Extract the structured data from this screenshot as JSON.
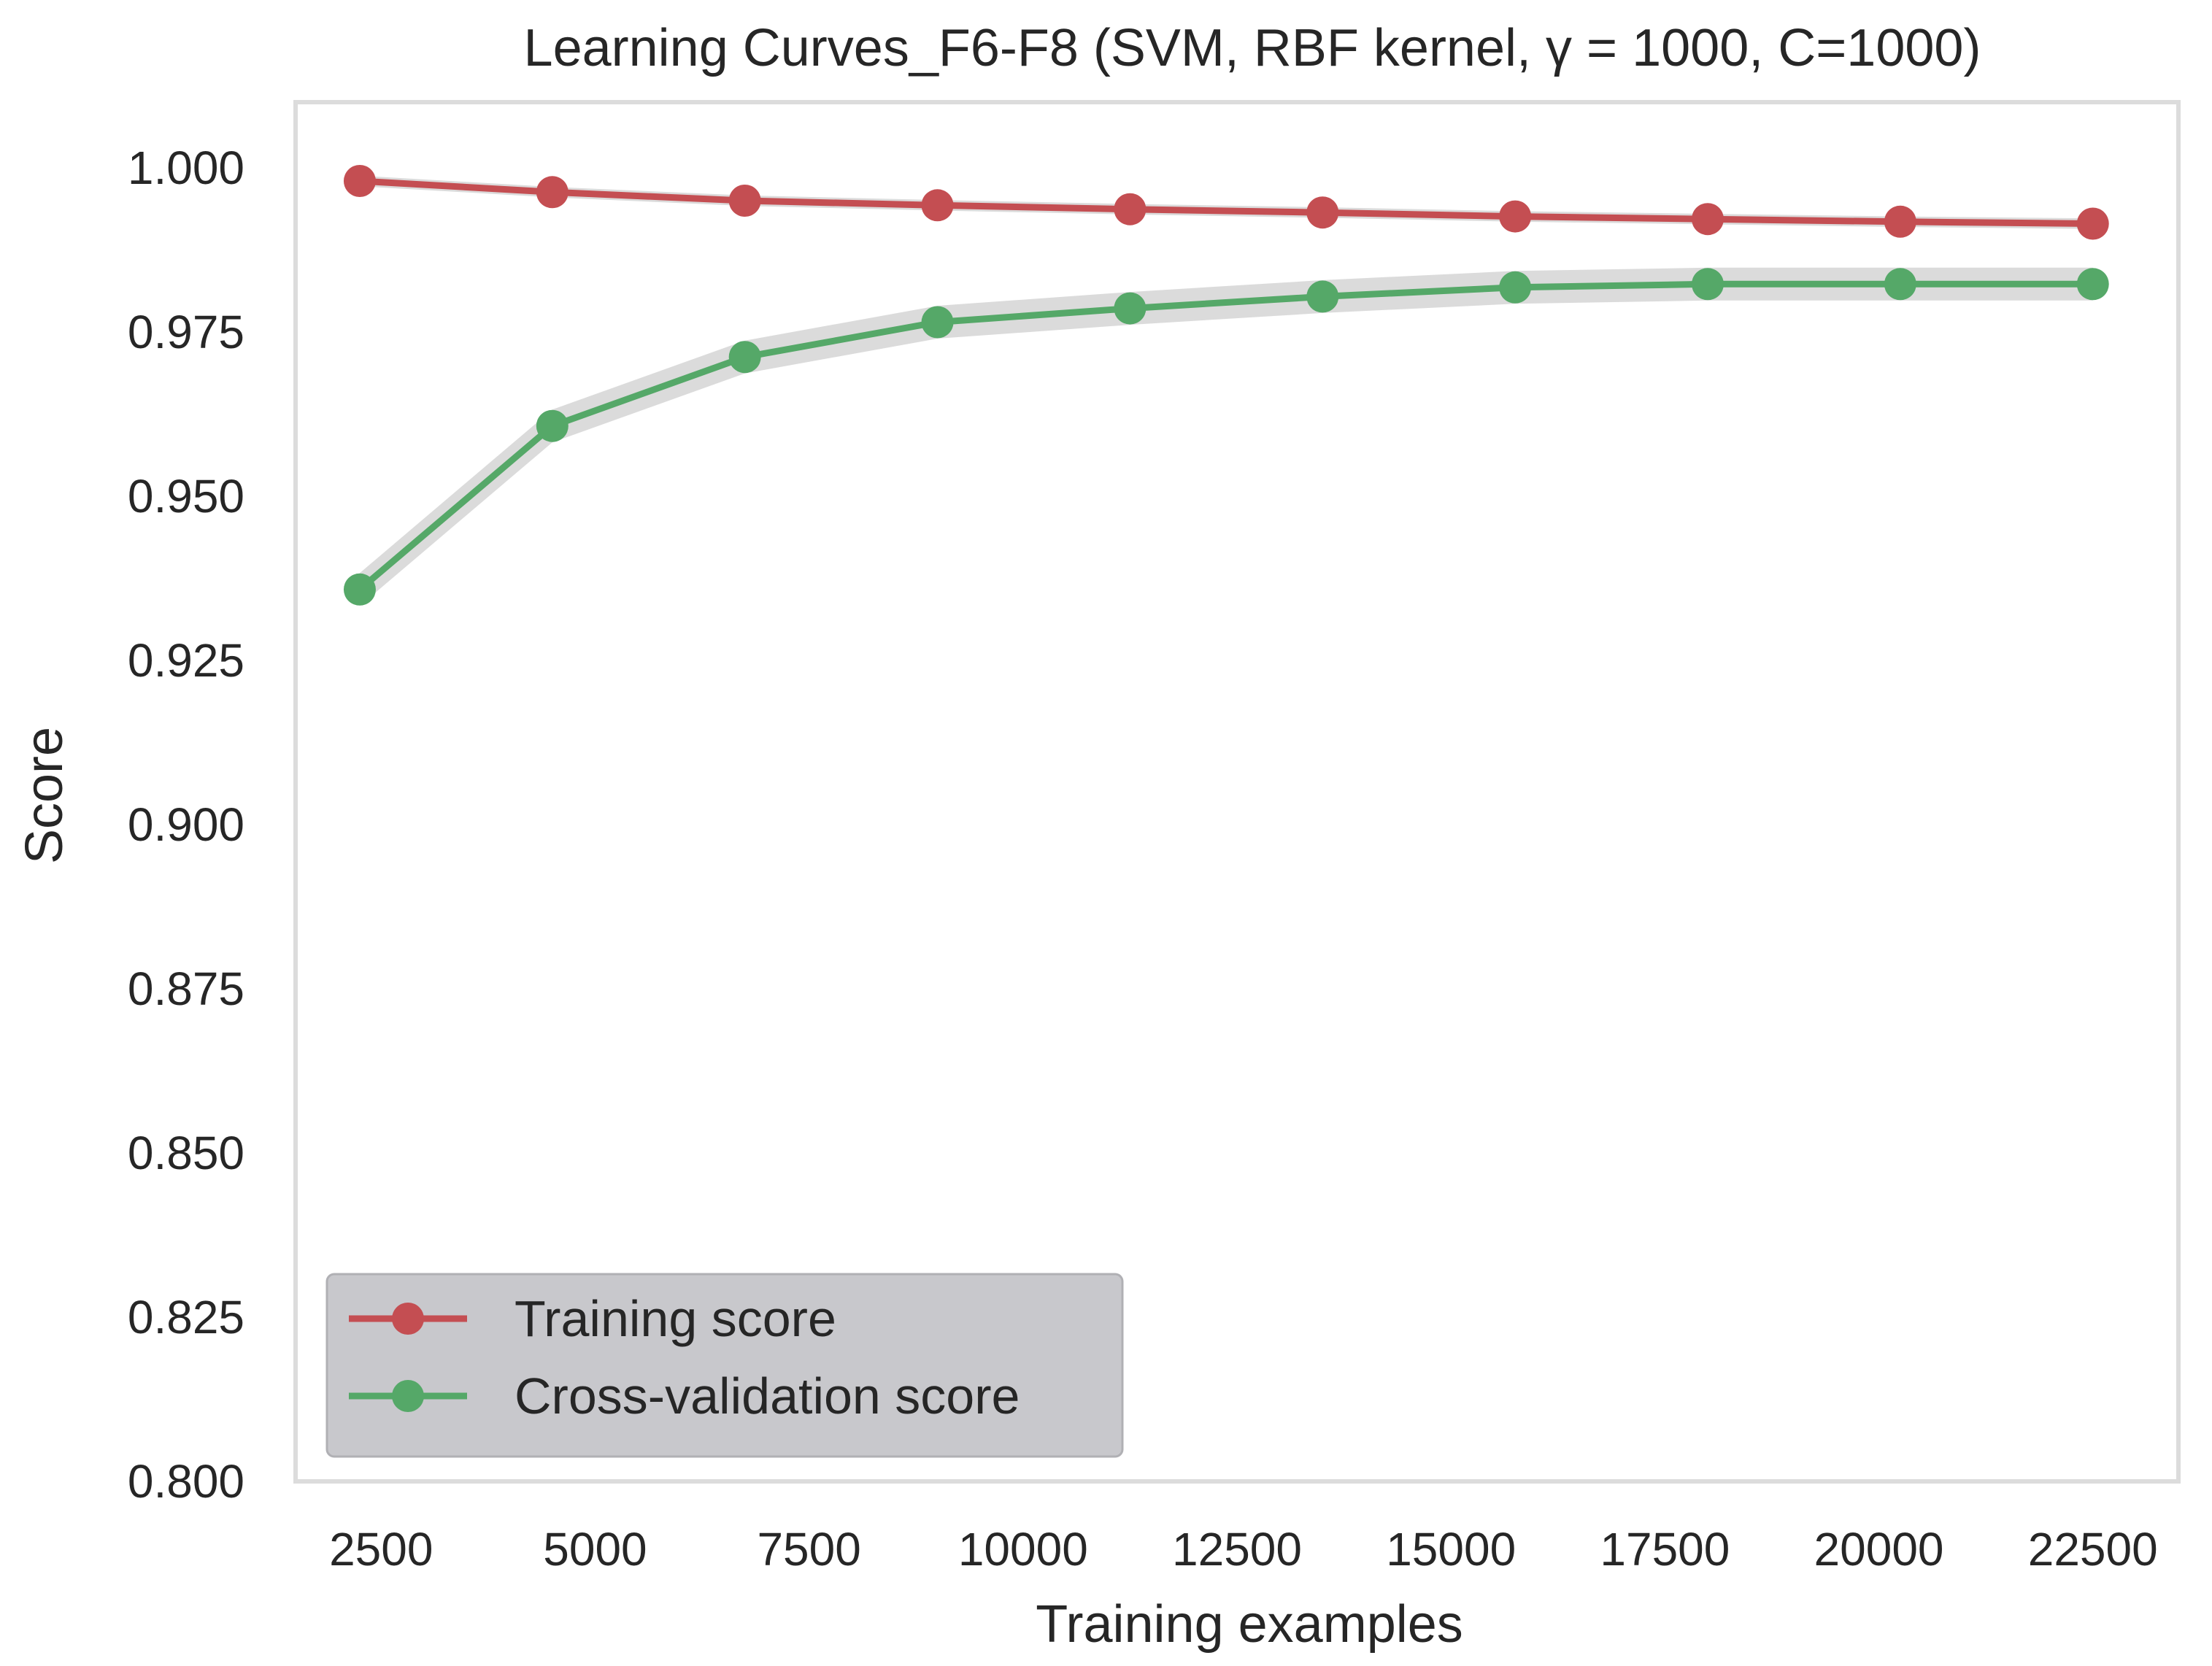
{
  "chart_data": {
    "type": "line",
    "title": "Learning Curves_F6-F8 (SVM, RBF kernel, γ = 1000, C=1000)",
    "xlabel": "Training examples",
    "ylabel": "Score",
    "xlim": [
      1500,
      23500
    ],
    "ylim": [
      0.8,
      1.01
    ],
    "x_ticks": [
      2500,
      5000,
      7500,
      10000,
      12500,
      15000,
      17500,
      20000,
      22500
    ],
    "x_tick_labels": [
      "2500",
      "5000",
      "7500",
      "10000",
      "12500",
      "15000",
      "17500",
      "20000",
      "22500"
    ],
    "y_ticks": [
      0.8,
      0.825,
      0.85,
      0.875,
      0.9,
      0.925,
      0.95,
      0.975,
      1.0
    ],
    "y_tick_labels": [
      "0.800",
      "0.825",
      "0.850",
      "0.875",
      "0.900",
      "0.925",
      "0.950",
      "0.975",
      "1.000"
    ],
    "grid": false,
    "legend_position": "lower-left",
    "x": [
      2250,
      4500,
      6750,
      9000,
      11250,
      13500,
      15750,
      18000,
      20250,
      22500
    ],
    "series": [
      {
        "name": "Training score",
        "color": "#c44e52",
        "marker": "circle",
        "values": [
          0.998,
          0.9963,
          0.995,
          0.9943,
          0.9937,
          0.9932,
          0.9926,
          0.9922,
          0.9918,
          0.9915
        ],
        "band": 0.0008
      },
      {
        "name": "Cross-validation score",
        "color": "#55a868",
        "marker": "circle",
        "values": [
          0.9358,
          0.9607,
          0.9712,
          0.9765,
          0.9786,
          0.9804,
          0.9818,
          0.9823,
          0.9823,
          0.9823
        ],
        "band": 0.0025
      }
    ],
    "band_color": "#bdbdbd"
  }
}
